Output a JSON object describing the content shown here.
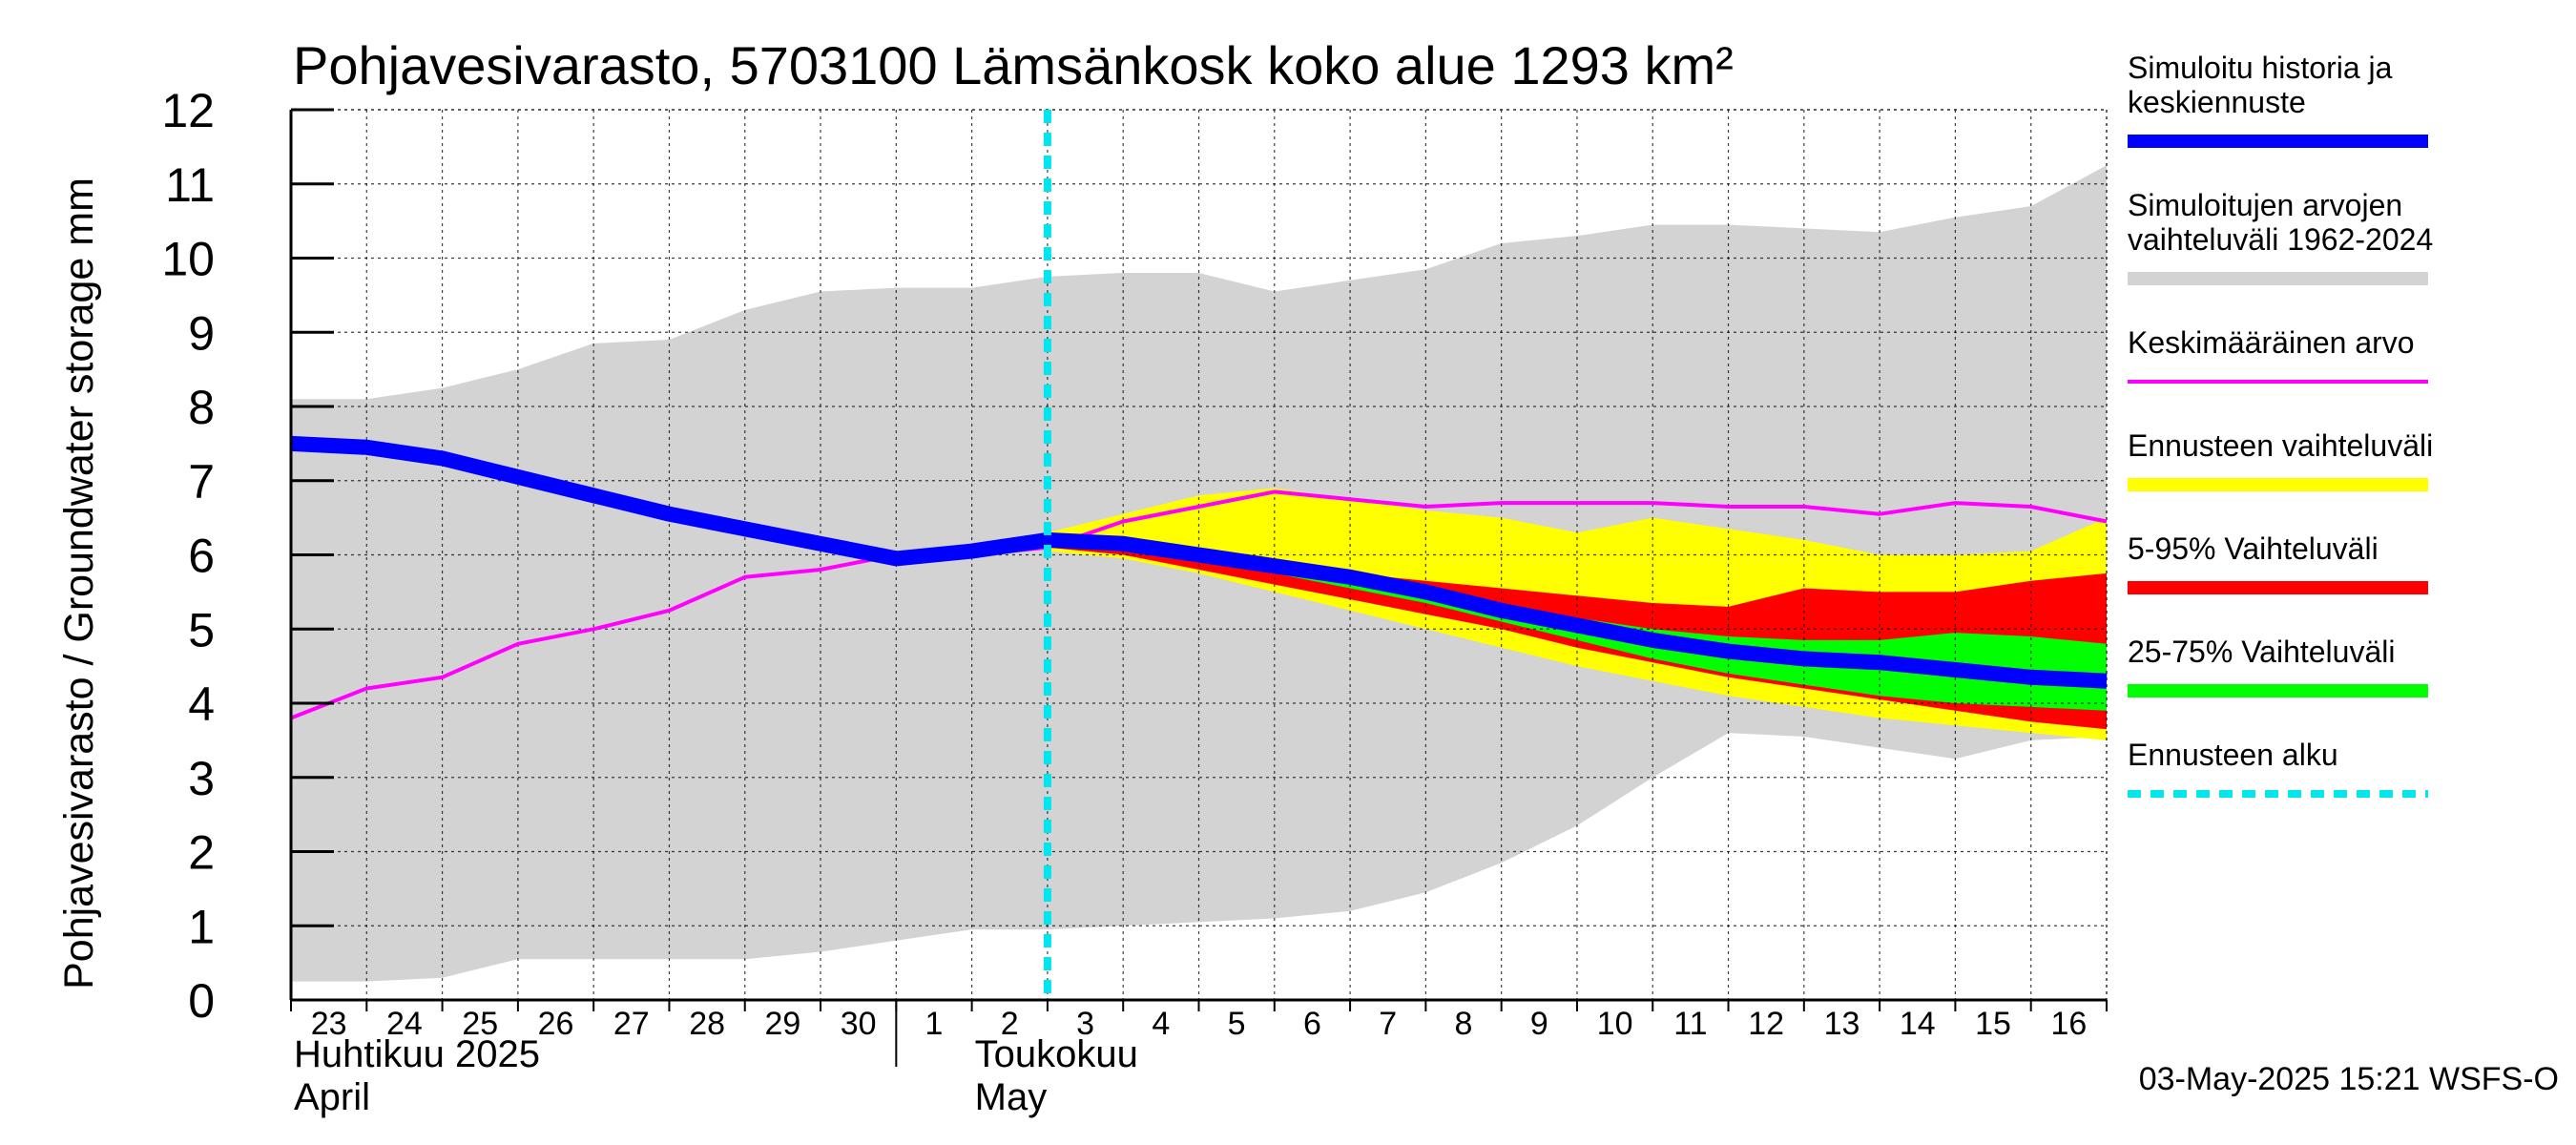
{
  "chart_data": {
    "type": "area",
    "title": "Pohjavesivarasto, 5703100 Lämsänkosk koko alue 1293 km²",
    "ylabel": "Pohjavesivarasto / Groundwater storage   mm",
    "ylim": [
      0,
      12
    ],
    "yticks": [
      "0",
      "1",
      "2",
      "3",
      "4",
      "5",
      "6",
      "7",
      "8",
      "9",
      "10",
      "11",
      "12"
    ],
    "x_day_labels": [
      "23",
      "24",
      "25",
      "26",
      "27",
      "28",
      "29",
      "30",
      "1",
      "2",
      "3",
      "4",
      "5",
      "6",
      "7",
      "8",
      "9",
      "10",
      "11",
      "12",
      "13",
      "14",
      "15",
      "16"
    ],
    "month_labels": [
      {
        "line1": "Huhtikuu  2025",
        "line2": "April",
        "day_index": 0
      },
      {
        "line1": "Toukokuu",
        "line2": "May",
        "day_index": 9
      }
    ],
    "x_index_range": [
      0,
      24
    ],
    "forecast_start_index": 10.0,
    "series": [
      {
        "name": "Simuloitujen arvojen vaihteluväli 1962-2024",
        "kind": "band",
        "color": "#d3d3d3",
        "x": [
          0,
          1,
          2,
          3,
          4,
          5,
          6,
          7,
          8,
          9,
          10,
          11,
          12,
          13,
          14,
          15,
          16,
          17,
          18,
          19,
          20,
          21,
          22,
          23,
          24
        ],
        "upper": [
          8.1,
          8.1,
          8.25,
          8.5,
          8.85,
          8.9,
          9.3,
          9.55,
          9.6,
          9.6,
          9.75,
          9.8,
          9.8,
          9.55,
          9.7,
          9.85,
          10.2,
          10.3,
          10.45,
          10.45,
          10.4,
          10.35,
          10.55,
          10.7,
          11.25
        ],
        "lower": [
          0.25,
          0.25,
          0.3,
          0.55,
          0.55,
          0.55,
          0.55,
          0.65,
          0.8,
          0.95,
          0.95,
          1.0,
          1.05,
          1.1,
          1.2,
          1.45,
          1.85,
          2.35,
          3.0,
          3.6,
          3.55,
          3.4,
          3.25,
          3.5,
          3.55
        ]
      },
      {
        "name": "Ennusteen vaihteluväli",
        "kind": "band",
        "color": "#ffff00",
        "x": [
          10,
          11,
          12,
          13,
          14,
          15,
          16,
          17,
          18,
          19,
          20,
          21,
          22,
          23,
          24
        ],
        "upper": [
          6.3,
          6.55,
          6.8,
          6.9,
          6.75,
          6.6,
          6.5,
          6.3,
          6.5,
          6.35,
          6.2,
          6.0,
          6.0,
          6.05,
          6.5
        ],
        "lower": [
          6.05,
          5.95,
          5.75,
          5.5,
          5.25,
          5.0,
          4.75,
          4.5,
          4.3,
          4.1,
          3.95,
          3.8,
          3.7,
          3.6,
          3.5
        ]
      },
      {
        "name": "5-95% Vaihteluväli",
        "kind": "band",
        "color": "#ff0000",
        "x": [
          10,
          11,
          12,
          13,
          14,
          15,
          16,
          17,
          18,
          19,
          20,
          21,
          22,
          23,
          24
        ],
        "upper": [
          6.15,
          6.1,
          6.0,
          5.85,
          5.75,
          5.65,
          5.55,
          5.45,
          5.35,
          5.3,
          5.55,
          5.5,
          5.5,
          5.65,
          5.75
        ],
        "lower": [
          6.1,
          6.0,
          5.8,
          5.6,
          5.4,
          5.2,
          5.0,
          4.75,
          4.55,
          4.35,
          4.2,
          4.05,
          3.9,
          3.75,
          3.65
        ]
      },
      {
        "name": "25-75% Vaihteluväli",
        "kind": "band",
        "color": "#00ff00",
        "x": [
          10,
          11,
          12,
          13,
          14,
          15,
          16,
          17,
          18,
          19,
          20,
          21,
          22,
          23,
          24
        ],
        "upper": [
          6.2,
          6.15,
          6.05,
          5.9,
          5.7,
          5.55,
          5.35,
          5.15,
          5.0,
          4.9,
          4.85,
          4.85,
          4.95,
          4.9,
          4.8
        ],
        "lower": [
          6.15,
          6.1,
          5.95,
          5.75,
          5.55,
          5.35,
          5.1,
          4.85,
          4.6,
          4.4,
          4.25,
          4.1,
          4.0,
          3.95,
          3.9
        ]
      },
      {
        "name": "Keskimääräinen arvo",
        "kind": "line",
        "color": "#ff00ff",
        "width": 4,
        "x": [
          0,
          1,
          2,
          3,
          4,
          5,
          6,
          7,
          8,
          9,
          10,
          11,
          12,
          13,
          14,
          15,
          16,
          17,
          18,
          19,
          20,
          21,
          22,
          23,
          24
        ],
        "values": [
          3.8,
          4.2,
          4.35,
          4.8,
          5.0,
          5.25,
          5.7,
          5.8,
          6.0,
          6.0,
          6.1,
          6.45,
          6.65,
          6.85,
          6.75,
          6.65,
          6.7,
          6.7,
          6.7,
          6.65,
          6.65,
          6.55,
          6.7,
          6.65,
          6.45
        ]
      },
      {
        "name": "Simuloitu historia ja keskiennuste",
        "kind": "line",
        "color": "#0000ff",
        "width": 16,
        "x": [
          0,
          1,
          2,
          3,
          4,
          5,
          6,
          7,
          8,
          9,
          10,
          11,
          12,
          13,
          14,
          15,
          16,
          17,
          18,
          19,
          20,
          21,
          22,
          23,
          24
        ],
        "values": [
          7.5,
          7.45,
          7.3,
          7.05,
          6.8,
          6.55,
          6.35,
          6.15,
          5.95,
          6.05,
          6.2,
          6.15,
          6.0,
          5.85,
          5.7,
          5.5,
          5.25,
          5.05,
          4.85,
          4.7,
          4.6,
          4.55,
          4.45,
          4.35,
          4.3
        ]
      }
    ],
    "forecast_line": {
      "name": "Ennusteen alku",
      "color": "#00e5ee",
      "index": 10.0
    }
  },
  "legend": [
    {
      "label_lines": [
        "Simuloitu historia ja",
        "keskiennuste"
      ],
      "color": "#0000ff",
      "style": "thick"
    },
    {
      "label_lines": [
        "Simuloitujen arvojen",
        "vaihteluväli 1962-2024"
      ],
      "color": "#d3d3d3",
      "style": "thick"
    },
    {
      "label_lines": [
        "Keskimääräinen arvo"
      ],
      "color": "#ff00ff",
      "style": "thin"
    },
    {
      "label_lines": [
        "Ennusteen vaihteluväli"
      ],
      "color": "#ffff00",
      "style": "thick"
    },
    {
      "label_lines": [
        "5-95% Vaihteluväli"
      ],
      "color": "#ff0000",
      "style": "thick"
    },
    {
      "label_lines": [
        "25-75% Vaihteluväli"
      ],
      "color": "#00ff00",
      "style": "thick"
    },
    {
      "label_lines": [
        "Ennusteen alku"
      ],
      "color": "#00e5ee",
      "style": "dashed"
    }
  ],
  "footer": "03-May-2025 15:21 WSFS-O"
}
